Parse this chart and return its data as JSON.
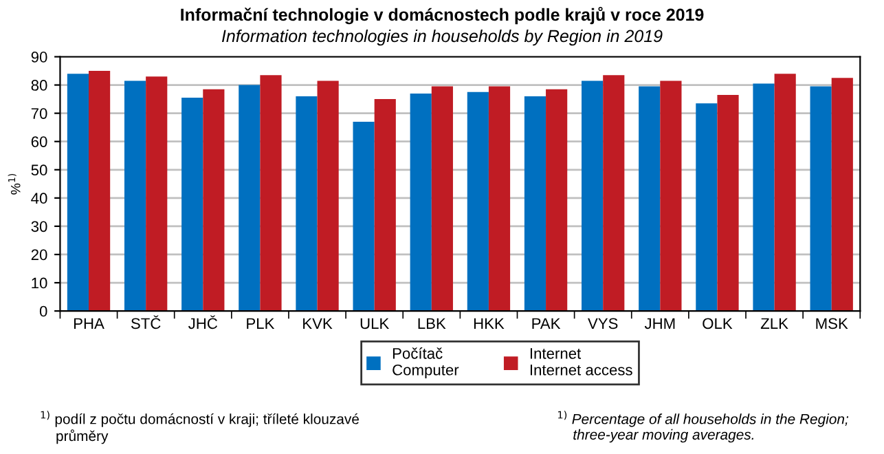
{
  "chart_data": {
    "type": "bar",
    "title": "Informační technologie v domácnostech podle krajů v roce 2019",
    "subtitle": "Information technologies in households by Region in 2019",
    "ylabel": "%$^{1)}$",
    "categories": [
      "PHA",
      "STČ",
      "JHČ",
      "PLK",
      "KVK",
      "ULK",
      "LBK",
      "HKK",
      "PAK",
      "VYS",
      "JHM",
      "OLK",
      "ZLK",
      "MSK"
    ],
    "series": [
      {
        "name": "Počítač\nComputer",
        "color": "#0070c0",
        "values": [
          84,
          81.5,
          75.5,
          80,
          76,
          67,
          77,
          77.5,
          76,
          81.5,
          79.5,
          73.5,
          80.5,
          79.5
        ]
      },
      {
        "name": "Internet\nInternet access",
        "color": "#c01c24",
        "values": [
          85,
          83,
          78.5,
          83.5,
          81.5,
          75,
          79.5,
          79.5,
          78.5,
          83.5,
          81.5,
          76.5,
          84,
          82.5
        ]
      }
    ],
    "ylim": [
      0,
      90
    ],
    "yticks": [
      0,
      10,
      20,
      30,
      40,
      50,
      60,
      70,
      80,
      90
    ],
    "grid": "y",
    "legend": "bottom",
    "annotations": [
      "$^{1)}$ podíl z počtu domácností v kraji; tříleté klouzavé\n    průměry",
      "$^{1)}$ Percentage of all households in the Region;\n    three-year moving averages."
    ]
  }
}
